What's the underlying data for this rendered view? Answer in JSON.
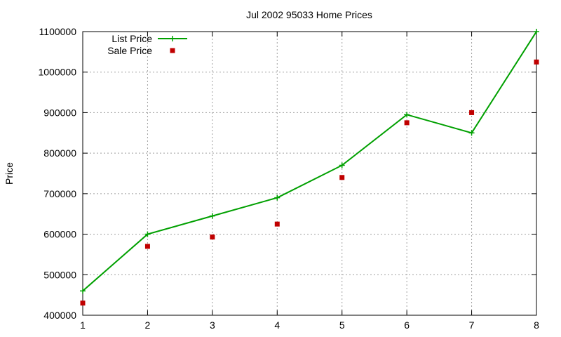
{
  "chart_data": {
    "type": "line",
    "title": "Jul 2002 95033 Home Prices",
    "xlabel": "",
    "ylabel": "Price",
    "x": [
      1,
      2,
      3,
      4,
      5,
      6,
      7,
      8
    ],
    "x_ticks": [
      "1",
      "2",
      "3",
      "4",
      "5",
      "6",
      "7",
      "8"
    ],
    "xlim": [
      1,
      8
    ],
    "ylim": [
      400000,
      1100000
    ],
    "y_ticks": [
      "400000",
      "500000",
      "600000",
      "700000",
      "800000",
      "900000",
      "1000000",
      "1100000"
    ],
    "grid": true,
    "legend_position": "top-left",
    "series": [
      {
        "name": "List Price",
        "style": "line+cross",
        "color": "#00a000",
        "values": [
          460000,
          600000,
          645000,
          690000,
          770000,
          895000,
          850000,
          1100000
        ]
      },
      {
        "name": "Sale Price",
        "style": "square-markers",
        "color": "#c00000",
        "values": [
          430000,
          570000,
          593000,
          625000,
          740000,
          875000,
          900000,
          1025000
        ]
      }
    ]
  }
}
